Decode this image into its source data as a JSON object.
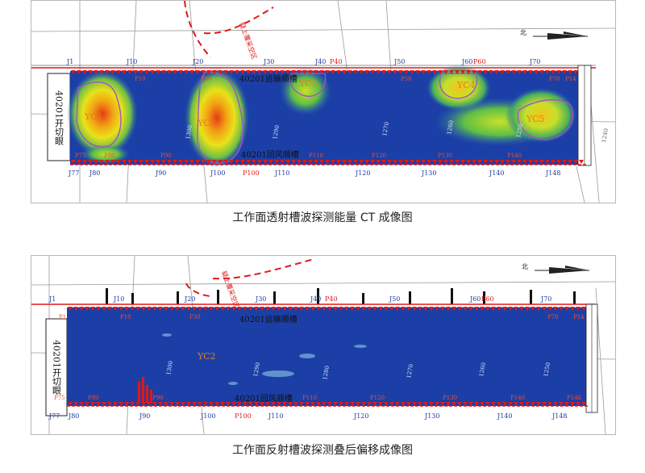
{
  "panels": [
    {
      "caption": "工作面透射槽波探测能量 CT 成像图",
      "side_label": "40201开切眼",
      "top_road": "40201运输顺槽",
      "bottom_road": "40201回风顺槽",
      "danger_text": "疑上覆采空区",
      "anomalies": [
        "YC1",
        "YC2",
        "YC3",
        "YC4",
        "YC5"
      ],
      "top_receivers": [
        "J1",
        "J10",
        "J20",
        "J30",
        "J40",
        "J50",
        "J60",
        "J70"
      ],
      "top_shots": [
        "P40",
        "P60"
      ],
      "bottom_receivers": [
        "J77",
        "J80",
        "J90",
        "J100",
        "J110",
        "J120",
        "J130",
        "J140",
        "J148"
      ],
      "bottom_shot": "P100",
      "inner_shots_top": [
        "P10",
        "P30",
        "P50",
        "P70",
        "P14"
      ],
      "inner_shots_bottom": [
        "P75",
        "P80",
        "P90",
        "P110",
        "P120",
        "P130",
        "P140"
      ],
      "faults": [
        "1300",
        "1290",
        "1270",
        "1260",
        "1250",
        "1240"
      ],
      "north": "北"
    },
    {
      "caption": "工作面反射槽波探测叠后偏移成像图",
      "side_label": "40201开切眼",
      "top_road": "40201运输顺槽",
      "bottom_road": "40201回风顺槽",
      "danger_text": "疑上覆采空区",
      "anomalies": [
        "YC2"
      ],
      "top_receivers": [
        "J1",
        "J10",
        "J20",
        "J30",
        "J40",
        "J50",
        "J60",
        "J70"
      ],
      "top_shots": [
        "P40",
        "P60"
      ],
      "bottom_receivers": [
        "J77",
        "J80",
        "J90",
        "J100",
        "J110",
        "J120",
        "J130",
        "J140",
        "J148"
      ],
      "bottom_shot": "P100",
      "inner_shots_top": [
        "P1",
        "P10",
        "P30",
        "P70",
        "P14"
      ],
      "inner_shots_bottom": [
        "P75",
        "P80",
        "P90",
        "P110",
        "P120",
        "P130",
        "P140",
        "P146"
      ],
      "faults": [
        "1300",
        "1290",
        "1280",
        "1270",
        "1260",
        "1250"
      ],
      "north": "北"
    }
  ],
  "colors": {
    "field": "#1b3fa6",
    "road_line": "#e01818",
    "anomaly_outline": "#a452c9",
    "receiver_label": "#1f3c9c",
    "shot_label": "#e01818"
  }
}
